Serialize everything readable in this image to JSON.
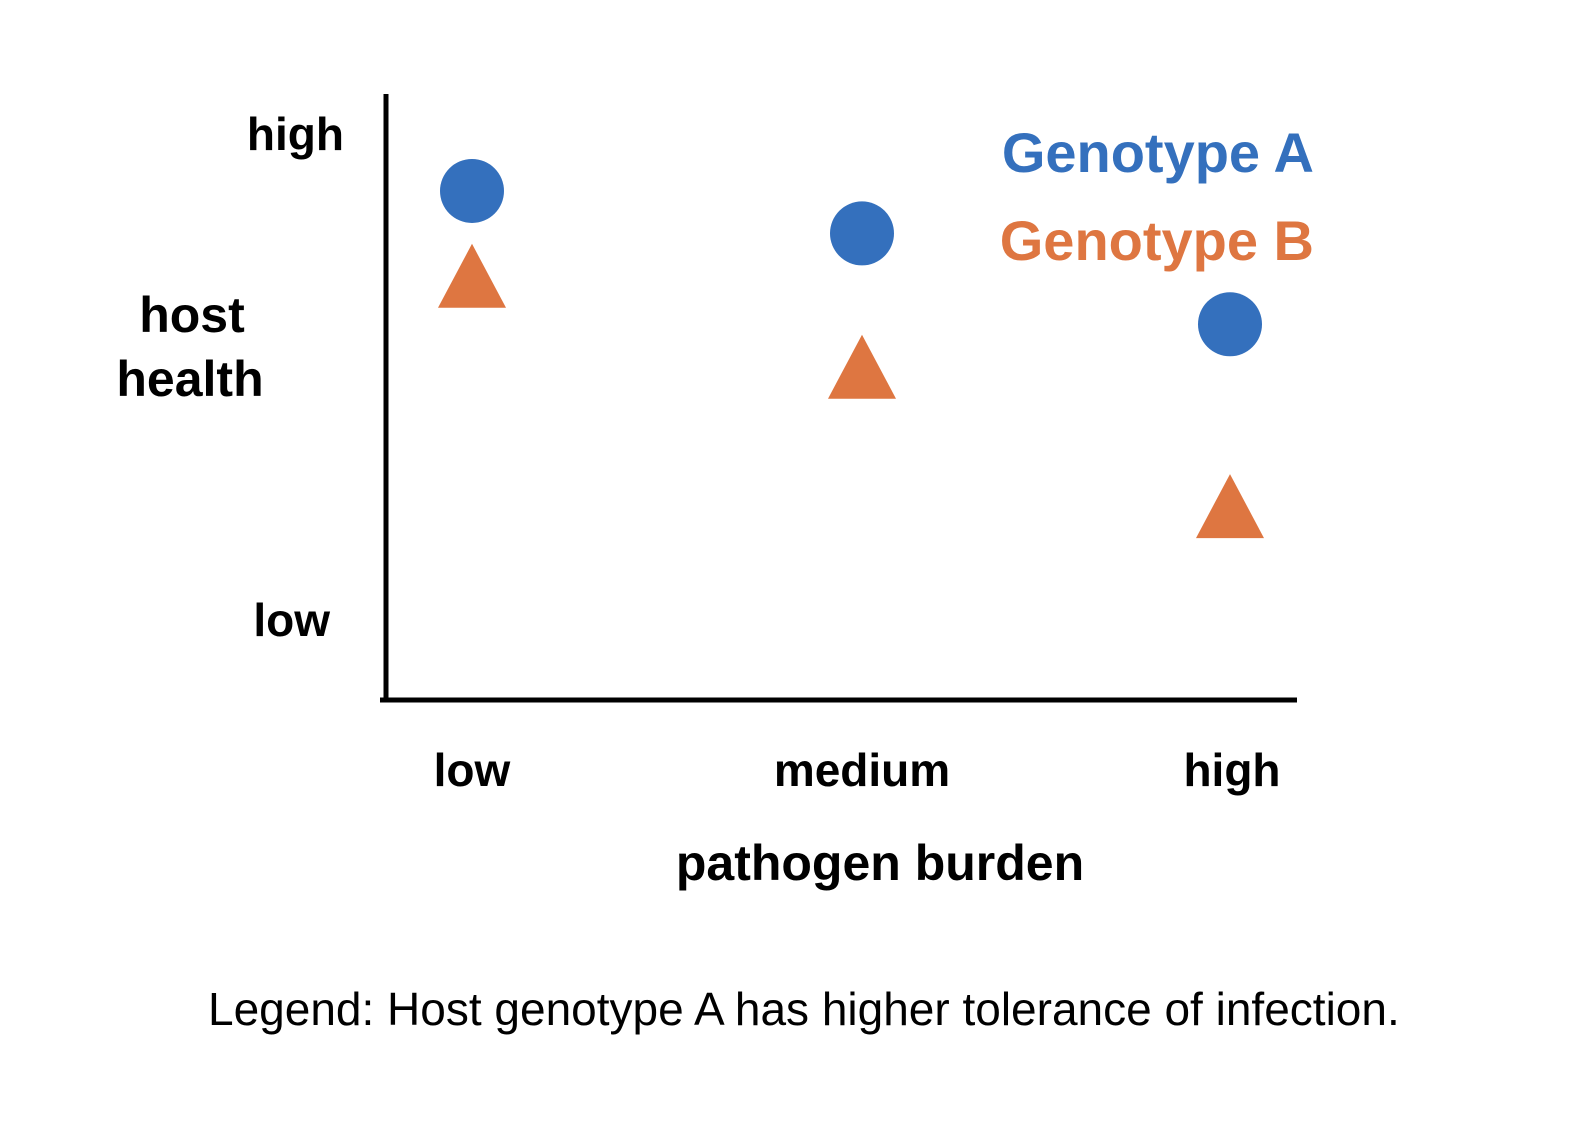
{
  "chart_data": {
    "type": "scatter",
    "x_axis": {
      "title": "pathogen burden",
      "categories": [
        "low",
        "medium",
        "high"
      ]
    },
    "y_axis": {
      "title_lines": [
        "host",
        "health"
      ],
      "tick_labels": {
        "top": "high",
        "bottom": "low"
      },
      "range": [
        0,
        1
      ]
    },
    "series": [
      {
        "name": "Genotype A",
        "marker": "circle",
        "color": "#3470BD",
        "values": [
          0.84,
          0.77,
          0.62
        ]
      },
      {
        "name": "Genotype B",
        "marker": "triangle",
        "color": "#DE7641",
        "values": [
          0.7,
          0.55,
          0.32
        ]
      }
    ],
    "legend_position": "top-right",
    "grid": false
  },
  "caption": "Legend: Host genotype A has higher tolerance of infection."
}
